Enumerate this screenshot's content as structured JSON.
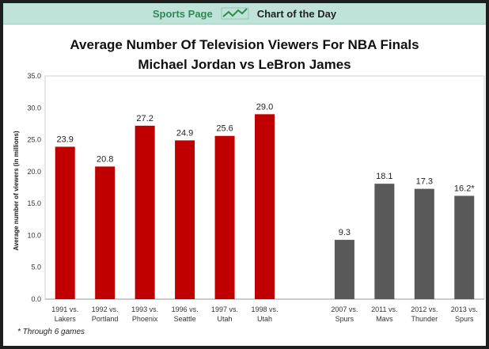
{
  "header": {
    "left": "Sports Page",
    "right": "Chart of the Day",
    "icon": "line-chart-icon"
  },
  "footnote": "* Through 6 games",
  "chart_data": {
    "type": "bar",
    "title": "Average Number Of Television Viewers For NBA Finals",
    "subtitle": "Michael Jordan vs LeBron James",
    "xlabel": "",
    "ylabel": "Average number of viewers (in millions)",
    "ylim": [
      0,
      35
    ],
    "yticks": [
      "0.0",
      "5.0",
      "10.0",
      "15.0",
      "20.0",
      "25.0",
      "30.0",
      "35.0"
    ],
    "grid": false,
    "categories": [
      [
        "1991 vs.",
        "Lakers"
      ],
      [
        "1992 vs.",
        "Portland"
      ],
      [
        "1993 vs.",
        "Phoenix"
      ],
      [
        "1996 vs.",
        "Seattle"
      ],
      [
        "1997 vs.",
        "Utah"
      ],
      [
        "1998 vs.",
        "Utah"
      ],
      null,
      [
        "2007 vs.",
        "Spurs"
      ],
      [
        "2011 vs.",
        "Mavs"
      ],
      [
        "2012 vs.",
        "Thunder"
      ],
      [
        "2013 vs.",
        "Spurs"
      ]
    ],
    "values": [
      23.9,
      20.8,
      27.2,
      24.9,
      25.6,
      29.0,
      null,
      9.3,
      18.1,
      17.3,
      16.2
    ],
    "labels": [
      "23.9",
      "20.8",
      "27.2",
      "24.9",
      "25.6",
      "29.0",
      null,
      "9.3",
      "18.1",
      "17.3",
      "16.2*"
    ],
    "series_colors": {
      "jordan": "#c00000",
      "lebron": "#595959"
    }
  }
}
